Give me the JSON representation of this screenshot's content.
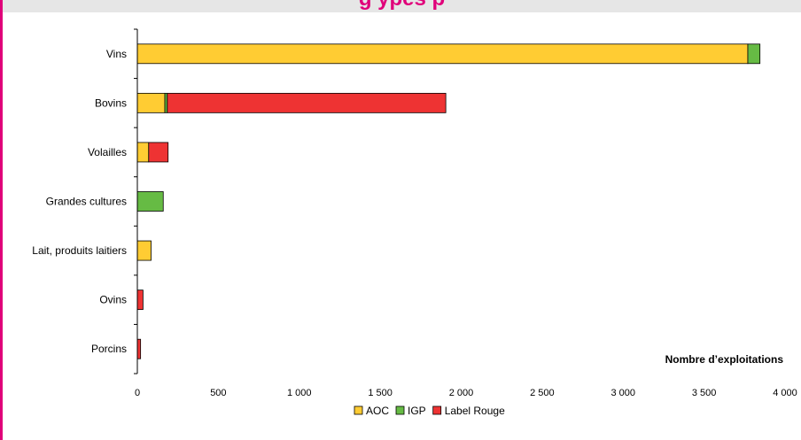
{
  "banner": {
    "title": "g                                                   ypes p",
    "accent_color": "#e0007a",
    "background": "#e6e6e6"
  },
  "chart_data": {
    "type": "bar",
    "orientation": "horizontal",
    "stacked": true,
    "categories": [
      "Vins",
      "Bovins",
      "Volailles",
      "Grandes cultures",
      "Lait, produits laitiers",
      "Ovins",
      "Porcins"
    ],
    "series": [
      {
        "name": "AOC",
        "color": "#ffcc33",
        "values": [
          3770,
          170,
          70,
          0,
          85,
          0,
          0
        ]
      },
      {
        "name": "IGP",
        "color": "#66bb44",
        "values": [
          75,
          15,
          0,
          160,
          0,
          0,
          0
        ]
      },
      {
        "name": "Label Rouge",
        "color": "#ee3333",
        "values": [
          0,
          1720,
          120,
          0,
          0,
          35,
          20
        ]
      }
    ],
    "xlim": [
      0,
      4000
    ],
    "xticks": [
      0,
      500,
      1000,
      1500,
      2000,
      2500,
      3000,
      3500,
      4000
    ],
    "xtick_labels": [
      "0",
      "500",
      "1 000",
      "1 500",
      "2 000",
      "2 500",
      "3 000",
      "3 500",
      "4 000"
    ],
    "xlabel": "Nombre d’exploitations",
    "grid": false,
    "legend_position": "bottom"
  }
}
